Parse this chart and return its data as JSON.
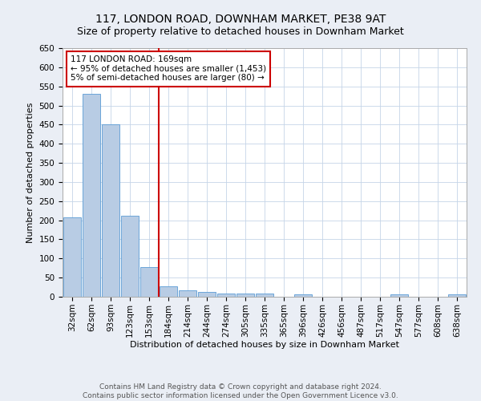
{
  "title": "117, LONDON ROAD, DOWNHAM MARKET, PE38 9AT",
  "subtitle": "Size of property relative to detached houses in Downham Market",
  "xlabel": "Distribution of detached houses by size in Downham Market",
  "ylabel": "Number of detached properties",
  "categories": [
    "32sqm",
    "62sqm",
    "93sqm",
    "123sqm",
    "153sqm",
    "184sqm",
    "214sqm",
    "244sqm",
    "274sqm",
    "305sqm",
    "335sqm",
    "365sqm",
    "396sqm",
    "426sqm",
    "456sqm",
    "487sqm",
    "517sqm",
    "547sqm",
    "577sqm",
    "608sqm",
    "638sqm"
  ],
  "values": [
    207,
    530,
    450,
    212,
    78,
    27,
    16,
    13,
    8,
    8,
    8,
    0,
    6,
    0,
    0,
    0,
    0,
    6,
    0,
    0,
    6
  ],
  "bar_color": "#b8cce4",
  "bar_edge_color": "#5b9bd5",
  "vline_color": "#cc0000",
  "annotation_box_text": "117 LONDON ROAD: 169sqm\n← 95% of detached houses are smaller (1,453)\n5% of semi-detached houses are larger (80) →",
  "annotation_box_color": "#cc0000",
  "ylim": [
    0,
    650
  ],
  "yticks": [
    0,
    50,
    100,
    150,
    200,
    250,
    300,
    350,
    400,
    450,
    500,
    550,
    600,
    650
  ],
  "footer_text": "Contains HM Land Registry data © Crown copyright and database right 2024.\nContains public sector information licensed under the Open Government Licence v3.0.",
  "bg_color": "#eaeef5",
  "plot_bg_color": "#ffffff",
  "grid_color": "#c5d5e8",
  "title_fontsize": 10,
  "subtitle_fontsize": 9,
  "axis_label_fontsize": 8,
  "tick_fontsize": 7.5,
  "annotation_fontsize": 7.5,
  "footer_fontsize": 6.5
}
